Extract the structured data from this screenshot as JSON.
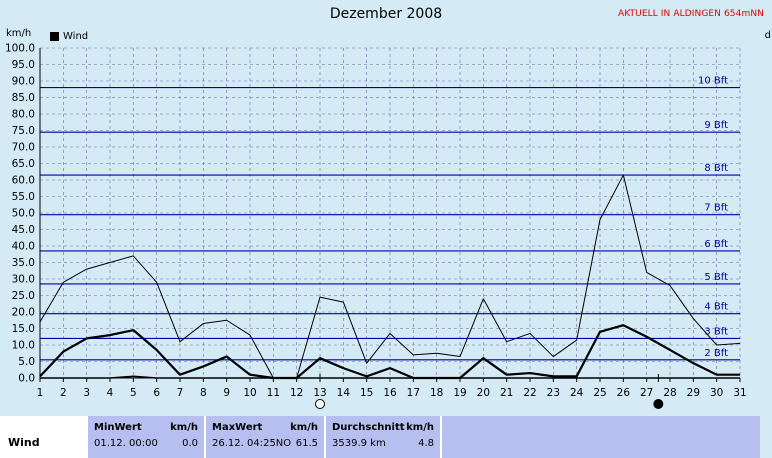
{
  "header": {
    "title": "Dezember 2008",
    "station": "AKTUELL IN ALDINGEN 654mNN",
    "unit": "km/h",
    "right_clip": "d"
  },
  "legend": {
    "label": "Wind"
  },
  "colors": {
    "background": "#d4ebf6",
    "beaufort_line": "#0000aa",
    "series": "#000000",
    "grid": "#6a6a9a"
  },
  "chart_data": {
    "type": "line",
    "ylabel": "km/h",
    "ylim": [
      0,
      100
    ],
    "yticks": [
      "0.0",
      "5.0",
      "10.0",
      "15.0",
      "20.0",
      "25.0",
      "30.0",
      "35.0",
      "40.0",
      "45.0",
      "50.0",
      "55.0",
      "60.0",
      "65.0",
      "70.0",
      "75.0",
      "80.0",
      "85.0",
      "90.0",
      "95.0",
      "100.0"
    ],
    "x": [
      1,
      2,
      3,
      4,
      5,
      6,
      7,
      8,
      9,
      10,
      11,
      12,
      13,
      14,
      15,
      16,
      17,
      18,
      19,
      20,
      21,
      22,
      23,
      24,
      25,
      26,
      27,
      28,
      29,
      30,
      31
    ],
    "series": [
      {
        "role": "max",
        "values": [
          17,
          29,
          33,
          35,
          37,
          29,
          11,
          16.5,
          17.5,
          13,
          0,
          0,
          24.5,
          23,
          4.5,
          13.5,
          7,
          7.5,
          6.5,
          24,
          11,
          13.5,
          6.5,
          11.5,
          48,
          61.5,
          32,
          28,
          18,
          10,
          10.5
        ]
      },
      {
        "role": "average",
        "values": [
          0.5,
          8,
          12,
          13,
          14.5,
          8.5,
          1,
          3.5,
          6.5,
          1,
          0,
          0,
          6,
          3,
          0.5,
          3,
          0,
          0,
          0,
          6,
          1,
          1.5,
          0.5,
          0.5,
          14,
          16,
          12.5,
          8.5,
          4.5,
          1,
          1
        ]
      },
      {
        "role": "min",
        "values": [
          0,
          0,
          0,
          0,
          0.5,
          0,
          0,
          0,
          0,
          0,
          0,
          0,
          0,
          0,
          0,
          0,
          0,
          0,
          0,
          0,
          0,
          0,
          0,
          0,
          0,
          0,
          0,
          0,
          0,
          0,
          0
        ]
      }
    ],
    "beaufort": [
      {
        "label": "2 Bft",
        "value": 5.5
      },
      {
        "label": "3 Bft",
        "value": 12
      },
      {
        "label": "4 Bft",
        "value": 19.5
      },
      {
        "label": "5 Bft",
        "value": 28.5
      },
      {
        "label": "6 Bft",
        "value": 38.5
      },
      {
        "label": "7 Bft",
        "value": 49.5
      },
      {
        "label": "8 Bft",
        "value": 61.5
      },
      {
        "label": "9 Bft",
        "value": 74.5
      },
      {
        "label": "10 Bft",
        "value": 88
      }
    ],
    "moon_markers": [
      {
        "day": 13,
        "phase": "full"
      },
      {
        "day": 27.5,
        "phase": "new"
      }
    ],
    "grid": true,
    "legend_position": "top-left"
  },
  "stats": {
    "row_label": "Wind",
    "min": {
      "header": "MinWert",
      "unit": "km/h",
      "date": "01.12.  00:00",
      "value": "0.0"
    },
    "max": {
      "header": "MaxWert",
      "unit": "km/h",
      "date": "26.12.  04:25NO",
      "value": "61.5"
    },
    "avg": {
      "header": "Durchschnitt",
      "unit": "km/h",
      "distance": "3539.9 km",
      "value": "4.8"
    }
  }
}
